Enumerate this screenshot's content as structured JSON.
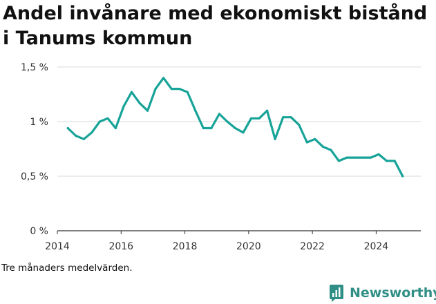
{
  "title": "Andel invånare med ekonomiskt bistånd i Tanums kommun",
  "note": "Tre månaders medelvärden.",
  "brand": {
    "name": "Newsworthy",
    "color": "#2f8f86"
  },
  "colors": {
    "line": "#17a398",
    "grid": "#d9d9d9",
    "axis": "#333333"
  },
  "chart_data": {
    "type": "line",
    "title": "Andel invånare med ekonomiskt bistånd i Tanums kommun",
    "xlabel": "",
    "ylabel": "",
    "xlim": [
      2014,
      2025.4
    ],
    "ylim": [
      0,
      1.5
    ],
    "x_ticks": [
      {
        "value": 2014,
        "label": "2014"
      },
      {
        "value": 2016,
        "label": "2016"
      },
      {
        "value": 2018,
        "label": "2018"
      },
      {
        "value": 2020,
        "label": "2020"
      },
      {
        "value": 2022,
        "label": "2022"
      },
      {
        "value": 2024,
        "label": "2024"
      }
    ],
    "y_ticks": [
      {
        "value": 0,
        "label": "0 %"
      },
      {
        "value": 0.5,
        "label": "0,5 %"
      },
      {
        "value": 1,
        "label": "1 %"
      },
      {
        "value": 1.5,
        "label": "1,5 %"
      }
    ],
    "series": [
      {
        "name": "Andel invånare med ekonomiskt bistånd",
        "x": [
          2014.33,
          2014.58,
          2014.83,
          2015.08,
          2015.33,
          2015.58,
          2015.83,
          2016.08,
          2016.33,
          2016.58,
          2016.83,
          2017.08,
          2017.33,
          2017.58,
          2017.83,
          2018.08,
          2018.33,
          2018.58,
          2018.83,
          2019.08,
          2019.33,
          2019.58,
          2019.83,
          2020.08,
          2020.33,
          2020.58,
          2020.83,
          2021.08,
          2021.33,
          2021.58,
          2021.83,
          2022.08,
          2022.33,
          2022.58,
          2022.83,
          2023.08,
          2023.33,
          2023.58,
          2023.83,
          2024.08,
          2024.33,
          2024.58,
          2024.83
        ],
        "values": [
          0.94,
          0.87,
          0.84,
          0.9,
          1.0,
          1.03,
          0.94,
          1.14,
          1.27,
          1.17,
          1.1,
          1.3,
          1.4,
          1.3,
          1.3,
          1.27,
          1.1,
          0.94,
          0.94,
          1.07,
          1.0,
          0.94,
          0.9,
          1.03,
          1.03,
          1.1,
          0.84,
          1.04,
          1.04,
          0.97,
          0.81,
          0.84,
          0.77,
          0.74,
          0.64,
          0.67,
          0.67,
          0.67,
          0.67,
          0.7,
          0.64,
          0.64,
          0.5
        ]
      }
    ]
  }
}
